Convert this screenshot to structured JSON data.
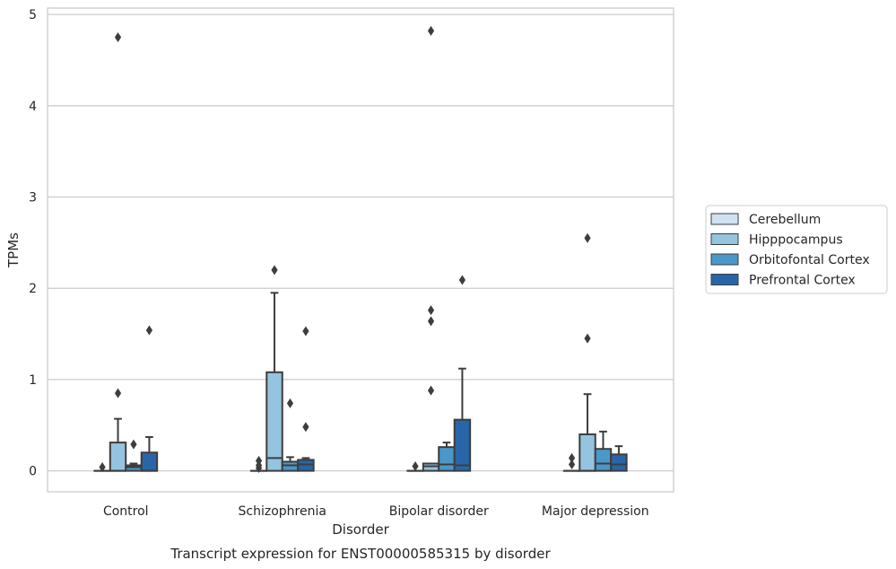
{
  "caption": "Transcript expression for ENST00000585315 by disorder",
  "chart_data": {
    "type": "boxplot",
    "xlabel": "Disorder",
    "ylabel": "TPMs",
    "ylim": [
      -0.23,
      5.07
    ],
    "yticks": [
      0,
      1,
      2,
      3,
      4,
      5
    ],
    "grid": "horizontal",
    "legend_position": "right",
    "categories": [
      "Control",
      "Schizophrenia",
      "Bipolar disorder",
      "Major depression"
    ],
    "series": [
      {
        "name": "Cerebellum",
        "color": "#d0e1f2",
        "boxes": [
          {
            "q1": 0,
            "median": 0,
            "q3": 0,
            "whisker_low": 0,
            "whisker_high": 0,
            "outliers": [
              0.04
            ]
          },
          {
            "q1": 0,
            "median": 0,
            "q3": 0,
            "whisker_low": 0,
            "whisker_high": 0,
            "outliers": [
              0.03,
              0.06,
              0.11
            ]
          },
          {
            "q1": 0,
            "median": 0,
            "q3": 0,
            "whisker_low": 0,
            "whisker_high": 0,
            "outliers": [
              0.05
            ]
          },
          {
            "q1": 0,
            "median": 0,
            "q3": 0,
            "whisker_low": 0,
            "whisker_high": 0,
            "outliers": [
              0.07,
              0.14
            ]
          }
        ]
      },
      {
        "name": "Hipppocampus",
        "color": "#94c4df",
        "boxes": [
          {
            "q1": 0,
            "median": 0,
            "q3": 0.31,
            "whisker_low": 0,
            "whisker_high": 0.57,
            "outliers": [
              0.85,
              4.75
            ]
          },
          {
            "q1": 0,
            "median": 0.14,
            "q3": 1.08,
            "whisker_low": 0,
            "whisker_high": 1.95,
            "outliers": [
              2.2
            ]
          },
          {
            "q1": 0,
            "median": 0.05,
            "q3": 0.08,
            "whisker_low": 0,
            "whisker_high": 0.08,
            "outliers": [
              0.88,
              1.64,
              1.76,
              4.82
            ]
          },
          {
            "q1": 0,
            "median": 0,
            "q3": 0.4,
            "whisker_low": 0,
            "whisker_high": 0.84,
            "outliers": [
              1.45,
              2.55
            ]
          }
        ]
      },
      {
        "name": "Orbitofontal Cortex",
        "color": "#4a98c9",
        "boxes": [
          {
            "q1": 0,
            "median": 0.04,
            "q3": 0.06,
            "whisker_low": 0,
            "whisker_high": 0.08,
            "outliers": [
              0.29
            ]
          },
          {
            "q1": 0,
            "median": 0.06,
            "q3": 0.1,
            "whisker_low": 0,
            "whisker_high": 0.15,
            "outliers": [
              0.74
            ]
          },
          {
            "q1": 0,
            "median": 0.07,
            "q3": 0.26,
            "whisker_low": 0,
            "whisker_high": 0.31,
            "outliers": []
          },
          {
            "q1": 0,
            "median": 0.08,
            "q3": 0.24,
            "whisker_low": 0,
            "whisker_high": 0.43,
            "outliers": []
          }
        ]
      },
      {
        "name": "Prefrontal Cortex",
        "color": "#2866a9",
        "boxes": [
          {
            "q1": 0,
            "median": 0,
            "q3": 0.2,
            "whisker_low": 0,
            "whisker_high": 0.37,
            "outliers": [
              1.54
            ]
          },
          {
            "q1": 0,
            "median": 0.07,
            "q3": 0.12,
            "whisker_low": 0,
            "whisker_high": 0.14,
            "outliers": [
              0.48,
              1.53
            ]
          },
          {
            "q1": 0,
            "median": 0.06,
            "q3": 0.56,
            "whisker_low": 0,
            "whisker_high": 1.12,
            "outliers": [
              2.09
            ]
          },
          {
            "q1": 0,
            "median": 0.07,
            "q3": 0.18,
            "whisker_low": 0,
            "whisker_high": 0.27,
            "outliers": []
          }
        ]
      }
    ]
  }
}
